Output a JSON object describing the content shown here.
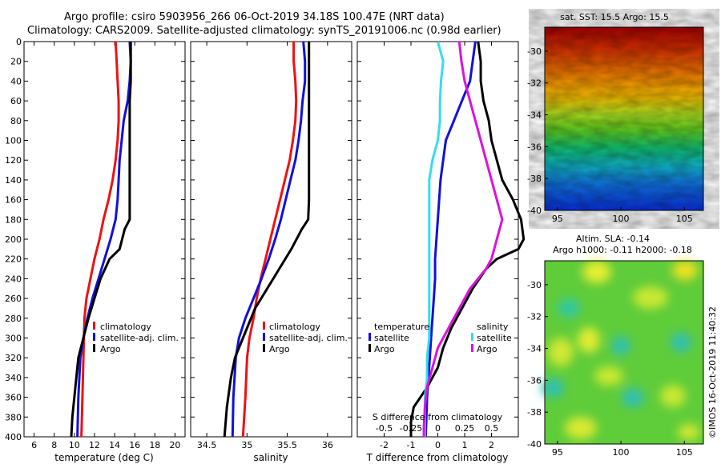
{
  "title": {
    "line1": "Argo profile: csiro 5903956_266 06-Oct-2019 34.18S 100.47E (NRT data)",
    "line2": "Climatology: CARS2009. Satellite-adjusted climatology: synTS_20191006.nc (0.98d earlier)"
  },
  "colors": {
    "climatology": "#ee1111",
    "satellite": "#1010dd",
    "argo": "#000000",
    "satellite_s": "#33ddee",
    "argo_s": "#dd11dd"
  },
  "chart_data": [
    {
      "type": "line",
      "id": "temperature",
      "xlabel": "temperature (deg C)",
      "xlim": [
        5,
        21
      ],
      "ylim": [
        400,
        0
      ],
      "xticks": [
        6,
        8,
        10,
        12,
        14,
        16,
        18,
        20
      ],
      "yticks": [
        0,
        20,
        40,
        60,
        80,
        100,
        120,
        140,
        160,
        180,
        200,
        220,
        240,
        260,
        280,
        300,
        320,
        340,
        360,
        380,
        400
      ],
      "legend": [
        "climatology",
        "satellite-adj. clim.",
        "Argo"
      ],
      "series": [
        {
          "name": "climatology",
          "color": "#ee1111",
          "x": [
            14.1,
            14.2,
            14.3,
            14.4,
            14.4,
            14.3,
            14.1,
            13.8,
            13.4,
            12.9,
            12.5,
            12.0,
            11.6,
            11.2,
            11.0,
            10.9,
            10.8,
            10.7
          ],
          "depth": [
            0,
            20,
            40,
            60,
            80,
            100,
            120,
            140,
            160,
            180,
            200,
            220,
            240,
            260,
            280,
            320,
            360,
            400
          ]
        },
        {
          "name": "satellite-adj. clim.",
          "color": "#1010dd",
          "x": [
            15.5,
            15.6,
            15.5,
            15.3,
            14.9,
            14.7,
            14.5,
            14.4,
            14.3,
            14.1,
            13.6,
            13.0,
            12.4,
            11.8,
            11.3,
            10.9,
            10.6,
            10.4,
            10.3
          ],
          "depth": [
            0,
            20,
            40,
            60,
            80,
            100,
            120,
            140,
            160,
            180,
            200,
            220,
            240,
            260,
            280,
            300,
            320,
            360,
            400
          ]
        },
        {
          "name": "Argo",
          "color": "#000000",
          "x": [
            15.6,
            15.6,
            15.6,
            15.5,
            15.5,
            15.5,
            15.5,
            15.5,
            15.5,
            15.5,
            15.0,
            14.5,
            13.5,
            12.6,
            12.0,
            11.4,
            10.9,
            10.4,
            10.0,
            9.8,
            9.7
          ],
          "depth": [
            0,
            20,
            40,
            60,
            80,
            100,
            120,
            140,
            160,
            180,
            190,
            210,
            220,
            240,
            260,
            280,
            300,
            320,
            360,
            380,
            400
          ]
        }
      ]
    },
    {
      "type": "line",
      "id": "salinity",
      "xlabel": "salinity",
      "xlim": [
        34.3,
        36.3
      ],
      "ylim": [
        400,
        0
      ],
      "xticks": [
        34.5,
        35,
        35.5,
        36
      ],
      "xticklabels": [
        "34.5",
        "35",
        "35.5",
        "36"
      ],
      "legend": [
        "climatology",
        "satellite-adj. clim.",
        "Argo"
      ],
      "series": [
        {
          "name": "climatology",
          "color": "#ee1111",
          "x": [
            35.58,
            35.58,
            35.6,
            35.61,
            35.6,
            35.57,
            35.53,
            35.47,
            35.41,
            35.35,
            35.29,
            35.23,
            35.17,
            35.12,
            35.08,
            35.03,
            35.0,
            34.98,
            34.95
          ],
          "depth": [
            0,
            20,
            40,
            60,
            80,
            100,
            120,
            140,
            160,
            180,
            200,
            220,
            240,
            260,
            280,
            300,
            320,
            360,
            400
          ]
        },
        {
          "name": "satellite-adj. clim.",
          "color": "#1010dd",
          "x": [
            35.7,
            35.72,
            35.72,
            35.69,
            35.67,
            35.64,
            35.6,
            35.54,
            35.48,
            35.42,
            35.35,
            35.27,
            35.18,
            35.08,
            34.98,
            34.9,
            34.86,
            34.83,
            34.82
          ],
          "depth": [
            0,
            20,
            40,
            60,
            80,
            100,
            120,
            140,
            160,
            180,
            200,
            220,
            240,
            260,
            280,
            300,
            320,
            360,
            400
          ]
        },
        {
          "name": "Argo",
          "color": "#000000",
          "x": [
            35.77,
            35.77,
            35.77,
            35.77,
            35.77,
            35.77,
            35.77,
            35.77,
            35.77,
            35.76,
            35.68,
            35.55,
            35.4,
            35.25,
            35.1,
            34.95,
            34.85,
            34.8,
            34.75,
            34.72
          ],
          "depth": [
            0,
            20,
            40,
            60,
            80,
            100,
            120,
            140,
            160,
            180,
            190,
            210,
            230,
            250,
            270,
            300,
            320,
            340,
            370,
            400
          ]
        }
      ]
    },
    {
      "type": "line",
      "id": "difference",
      "xlabel": "T difference from climatology",
      "xlim": [
        -3,
        3
      ],
      "ylim": [
        400,
        0
      ],
      "xticks": [
        -2,
        -1,
        0,
        1,
        2
      ],
      "top_axis_label": "S difference from climatology",
      "top_ticks": [
        "-0.5",
        "-0.25",
        "0",
        "0.25",
        "0.5"
      ],
      "legend_temperature": {
        "title": "temperature",
        "items": [
          "satellite",
          "Argo"
        ]
      },
      "legend_salinity": {
        "title": "salinity",
        "items": [
          "satellite",
          "Argo"
        ]
      },
      "series": [
        {
          "name": "T satellite",
          "color": "#1010dd",
          "x": [
            1.4,
            1.3,
            1.2,
            0.9,
            0.6,
            0.3,
            0.2,
            0.1,
            0.05,
            0.0,
            -0.05,
            -0.1,
            -0.1,
            -0.15,
            -0.2,
            -0.25,
            -0.3,
            -0.35,
            -0.4,
            -0.45
          ],
          "depth": [
            0,
            20,
            40,
            60,
            80,
            100,
            120,
            140,
            160,
            180,
            200,
            220,
            240,
            260,
            280,
            300,
            320,
            340,
            360,
            400
          ]
        },
        {
          "name": "T Argo",
          "color": "#000000",
          "x": [
            1.5,
            1.6,
            1.6,
            1.7,
            1.9,
            2.0,
            2.2,
            2.4,
            2.8,
            3.1,
            3.2,
            3.0,
            2.2,
            1.8,
            1.3,
            0.9,
            0.5,
            0.2,
            0.0,
            -0.4,
            -0.9,
            -1.0,
            -1.0
          ],
          "depth": [
            0,
            20,
            40,
            60,
            80,
            100,
            120,
            140,
            160,
            180,
            200,
            210,
            220,
            230,
            250,
            270,
            290,
            310,
            330,
            350,
            370,
            385,
            400
          ]
        },
        {
          "name": "S satellite",
          "color": "#33ddee",
          "x": [
            0.0,
            0.05,
            0.03,
            0.02,
            0.02,
            0.0,
            -0.05,
            -0.08,
            -0.08,
            -0.08,
            -0.08,
            -0.08,
            -0.08,
            -0.08,
            -0.08,
            -0.08,
            -0.1,
            -0.1,
            -0.12,
            -0.12
          ],
          "depth": [
            0,
            20,
            40,
            60,
            80,
            100,
            120,
            140,
            160,
            180,
            200,
            220,
            240,
            260,
            280,
            300,
            320,
            340,
            360,
            400
          ]
        },
        {
          "name": "S Argo",
          "color": "#dd11dd",
          "x": [
            0.2,
            0.22,
            0.25,
            0.3,
            0.35,
            0.4,
            0.45,
            0.5,
            0.55,
            0.6,
            0.55,
            0.5,
            0.45,
            0.3,
            0.2,
            0.1,
            0.0,
            -0.05,
            -0.1,
            -0.12,
            -0.13,
            -0.13
          ],
          "depth": [
            0,
            20,
            40,
            60,
            80,
            100,
            120,
            140,
            160,
            180,
            200,
            220,
            230,
            250,
            270,
            290,
            310,
            330,
            350,
            370,
            390,
            400
          ]
        }
      ]
    },
    {
      "type": "heatmap",
      "id": "sst-map",
      "title": "sat. SST: 15.5 Argo: 15.5",
      "xticks": [
        95,
        100,
        105
      ],
      "yticks": [
        -30,
        -32,
        -34,
        -36,
        -38,
        -40
      ],
      "xlim": [
        94,
        106.5
      ],
      "ylim": [
        -40,
        -28.5
      ]
    },
    {
      "type": "heatmap",
      "id": "sla-map",
      "title_line1": "Altim. SLA: -0.14",
      "title_line2": "Argo h1000: -0.11 h2000: -0.18",
      "xticks": [
        95,
        100,
        105
      ],
      "yticks": [
        -30,
        -32,
        -34,
        -36,
        -38,
        -40
      ],
      "xlim": [
        94,
        106.5
      ],
      "ylim": [
        -40,
        -28.5
      ]
    }
  ],
  "credit": "©IMOS 16-Oct-2019 11:40:32"
}
